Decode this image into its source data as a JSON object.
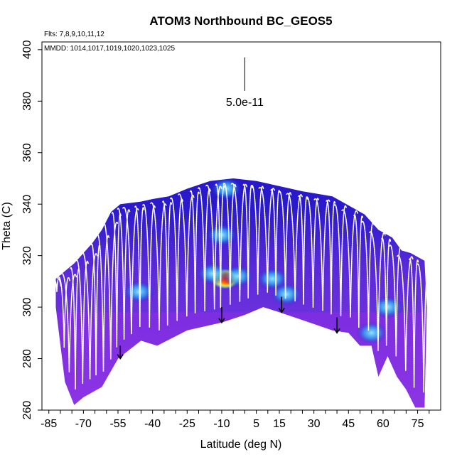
{
  "chart_data": {
    "type": "heatmap",
    "title": "ATOM3 Northbound BC_GEOS5",
    "flights_note": "Flts: 7,8,9,10,11,12",
    "dates_note": "MMDD: 1014,1017,1019,1020,1023,1025",
    "xlabel": "Latitude (deg N)",
    "ylabel": "Theta (C)",
    "xlim": [
      -88,
      85
    ],
    "ylim": [
      260,
      403
    ],
    "x_ticks": [
      -85,
      -70,
      -55,
      -40,
      -25,
      -10,
      5,
      15,
      30,
      45,
      60,
      75
    ],
    "x_minor_step": 5,
    "y_ticks": [
      260,
      280,
      300,
      320,
      340,
      360,
      380,
      400
    ],
    "scale_bar_label": "5.0e-11",
    "scale_bar": {
      "x": 0,
      "y_top": 397,
      "y_bottom": 384
    },
    "colors": {
      "low": "#8A2BE2",
      "mid": "#2020C8",
      "cyan": "#40C8FF",
      "high": "#FF2020",
      "profile": "#FFFFFF"
    },
    "boundary_top": [
      [
        -82,
        311
      ],
      [
        -78,
        314
      ],
      [
        -74,
        317
      ],
      [
        -70,
        321
      ],
      [
        -66,
        325
      ],
      [
        -62,
        330
      ],
      [
        -58,
        337
      ],
      [
        -54,
        340
      ],
      [
        -45,
        341
      ],
      [
        -40,
        342
      ],
      [
        -33,
        343
      ],
      [
        -25,
        346
      ],
      [
        -15,
        349
      ],
      [
        -5,
        350
      ],
      [
        5,
        349
      ],
      [
        15,
        347
      ],
      [
        25,
        345
      ],
      [
        38,
        343
      ],
      [
        46,
        339
      ],
      [
        52,
        336
      ],
      [
        58,
        330
      ],
      [
        64,
        327
      ],
      [
        68,
        322
      ],
      [
        72,
        321
      ],
      [
        78,
        318
      ]
    ],
    "boundary_bottom": [
      [
        -82,
        300
      ],
      [
        -78,
        271
      ],
      [
        -74,
        262
      ],
      [
        -70,
        265
      ],
      [
        -62,
        269
      ],
      [
        -55,
        280
      ],
      [
        -45,
        287
      ],
      [
        -38,
        285
      ],
      [
        -25,
        291
      ],
      [
        -10,
        294
      ],
      [
        0,
        297
      ],
      [
        8,
        300
      ],
      [
        15,
        298
      ],
      [
        25,
        295
      ],
      [
        38,
        291
      ],
      [
        45,
        290
      ],
      [
        50,
        285
      ],
      [
        55,
        285
      ],
      [
        58,
        273
      ],
      [
        62,
        281
      ],
      [
        66,
        273
      ],
      [
        70,
        268
      ],
      [
        74,
        261
      ],
      [
        78,
        261
      ],
      [
        79,
        300
      ]
    ],
    "hotspots": [
      {
        "x": -9,
        "y": 311,
        "level": "high"
      },
      {
        "x": -8,
        "y": 311,
        "level": "high"
      },
      {
        "x": -14,
        "y": 313,
        "level": "cyan"
      },
      {
        "x": -3,
        "y": 312,
        "level": "cyan"
      },
      {
        "x": 12,
        "y": 311,
        "level": "cyan"
      },
      {
        "x": -10,
        "y": 328,
        "level": "cyan"
      },
      {
        "x": -8,
        "y": 346,
        "level": "cyan"
      },
      {
        "x": -46,
        "y": 306,
        "level": "cyan"
      },
      {
        "x": 18,
        "y": 305,
        "level": "cyan"
      },
      {
        "x": 55,
        "y": 290,
        "level": "cyan"
      },
      {
        "x": 62,
        "y": 300,
        "level": "cyan"
      }
    ],
    "profile_columns": [
      -82,
      -79,
      -77,
      -74,
      -71,
      -68,
      -65,
      -62,
      -59,
      -56,
      -53,
      -50,
      -46,
      -42,
      -38,
      -34,
      -30,
      -26,
      -22,
      -18,
      -14,
      -11,
      -7,
      -3,
      1,
      5,
      9,
      13,
      17,
      21,
      25,
      29,
      33,
      37,
      41,
      45,
      49,
      53,
      57,
      61,
      65,
      69,
      73,
      77
    ],
    "arrows": [
      {
        "x": -54,
        "y_from": 285,
        "y_to": 280
      },
      {
        "x": -10,
        "y_from": 300,
        "y_to": 294
      },
      {
        "x": 16,
        "y_from": 304,
        "y_to": 298
      },
      {
        "x": 40,
        "y_from": 296,
        "y_to": 290
      }
    ]
  }
}
